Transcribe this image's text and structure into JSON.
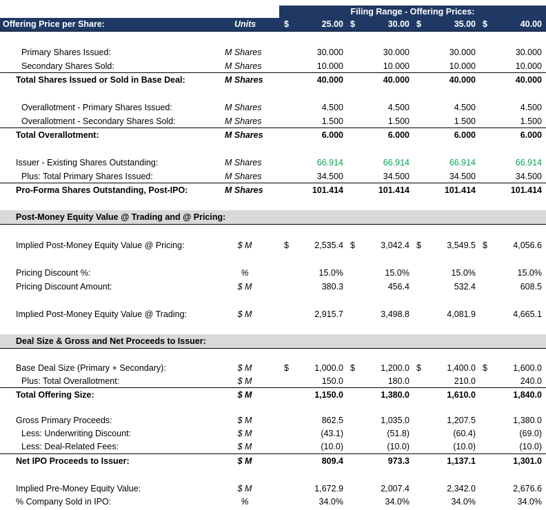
{
  "header": {
    "filing_range": "Filing Range - Offering Prices:",
    "title": "Offering Price per Share:",
    "units": "Units",
    "dollar": "$",
    "prices": [
      "25.00",
      "30.00",
      "35.00",
      "40.00"
    ]
  },
  "sections": {
    "post_money": "Post-Money Equity Value @ Trading and @ Pricing:",
    "deal_size": "Deal Size & Gross and Net Proceeds to Issuer:"
  },
  "rows": {
    "primary_shares": {
      "label": "Primary Shares Issued:",
      "unit": "M Shares",
      "values": [
        "30.000",
        "30.000",
        "30.000",
        "30.000"
      ]
    },
    "secondary_shares": {
      "label": "Secondary Shares Sold:",
      "unit": "M Shares",
      "values": [
        "10.000",
        "10.000",
        "10.000",
        "10.000"
      ]
    },
    "total_shares": {
      "label": "Total Shares Issued or Sold in Base Deal:",
      "unit": "M Shares",
      "values": [
        "40.000",
        "40.000",
        "40.000",
        "40.000"
      ]
    },
    "oa_primary": {
      "label": "Overallotment - Primary Shares Issued:",
      "unit": "M Shares",
      "values": [
        "4.500",
        "4.500",
        "4.500",
        "4.500"
      ]
    },
    "oa_secondary": {
      "label": "Overallotment - Secondary Shares Sold:",
      "unit": "M Shares",
      "values": [
        "1.500",
        "1.500",
        "1.500",
        "1.500"
      ]
    },
    "total_oa": {
      "label": "Total Overallotment:",
      "unit": "M Shares",
      "values": [
        "6.000",
        "6.000",
        "6.000",
        "6.000"
      ]
    },
    "existing": {
      "label": "Issuer - Existing Shares Outstanding:",
      "unit": "M Shares",
      "values": [
        "66.914",
        "66.914",
        "66.914",
        "66.914"
      ]
    },
    "plus_primary": {
      "label": "Plus: Total Primary Shares Issued:",
      "unit": "M Shares",
      "values": [
        "34.500",
        "34.500",
        "34.500",
        "34.500"
      ]
    },
    "proforma": {
      "label": "Pro-Forma Shares Outstanding, Post-IPO:",
      "unit": "M Shares",
      "values": [
        "101.414",
        "101.414",
        "101.414",
        "101.414"
      ]
    },
    "post_money_pricing": {
      "label": "Implied Post-Money Equity Value @ Pricing:",
      "unit": "$ M",
      "values": [
        "2,535.4",
        "3,042.4",
        "3,549.5",
        "4,056.6"
      ]
    },
    "pricing_discount_pct": {
      "label": "Pricing Discount %:",
      "unit": "%",
      "values": [
        "15.0%",
        "15.0%",
        "15.0%",
        "15.0%"
      ]
    },
    "pricing_discount_amt": {
      "label": "Pricing Discount Amount:",
      "unit": "$ M",
      "values": [
        "380.3",
        "456.4",
        "532.4",
        "608.5"
      ]
    },
    "post_money_trading": {
      "label": "Implied Post-Money Equity Value @ Trading:",
      "unit": "$ M",
      "values": [
        "2,915.7",
        "3,498.8",
        "4,081.9",
        "4,665.1"
      ]
    },
    "base_deal": {
      "label": "Base Deal Size (Primary + Secondary):",
      "unit": "$ M",
      "values": [
        "1,000.0",
        "1,200.0",
        "1,400.0",
        "1,600.0"
      ]
    },
    "plus_oa": {
      "label": "Plus: Total Overallotment:",
      "unit": "$ M",
      "values": [
        "150.0",
        "180.0",
        "210.0",
        "240.0"
      ]
    },
    "total_offering": {
      "label": "Total Offering Size:",
      "unit": "$ M",
      "values": [
        "1,150.0",
        "1,380.0",
        "1,610.0",
        "1,840.0"
      ]
    },
    "gross_primary": {
      "label": "Gross Primary Proceeds:",
      "unit": "$ M",
      "values": [
        "862.5",
        "1,035.0",
        "1,207.5",
        "1,380.0"
      ]
    },
    "underwriting": {
      "label": "Less: Underwriting Discount:",
      "unit": "$ M",
      "values": [
        "(43.1)",
        "(51.8)",
        "(60.4)",
        "(69.0)"
      ]
    },
    "deal_fees": {
      "label": "Less: Deal-Related Fees:",
      "unit": "$ M",
      "values": [
        "(10.0)",
        "(10.0)",
        "(10.0)",
        "(10.0)"
      ]
    },
    "net_proceeds": {
      "label": "Net IPO Proceeds to Issuer:",
      "unit": "$ M",
      "values": [
        "809.4",
        "973.3",
        "1,137.1",
        "1,301.0"
      ]
    },
    "pre_money": {
      "label": "Implied Pre-Money Equity Value:",
      "unit": "$ M",
      "values": [
        "1,672.9",
        "2,007.4",
        "2,342.0",
        "2,676.6"
      ]
    },
    "pct_sold": {
      "label": "% Company Sold in IPO:",
      "unit": "%",
      "values": [
        "34.0%",
        "34.0%",
        "34.0%",
        "34.0%"
      ]
    }
  }
}
